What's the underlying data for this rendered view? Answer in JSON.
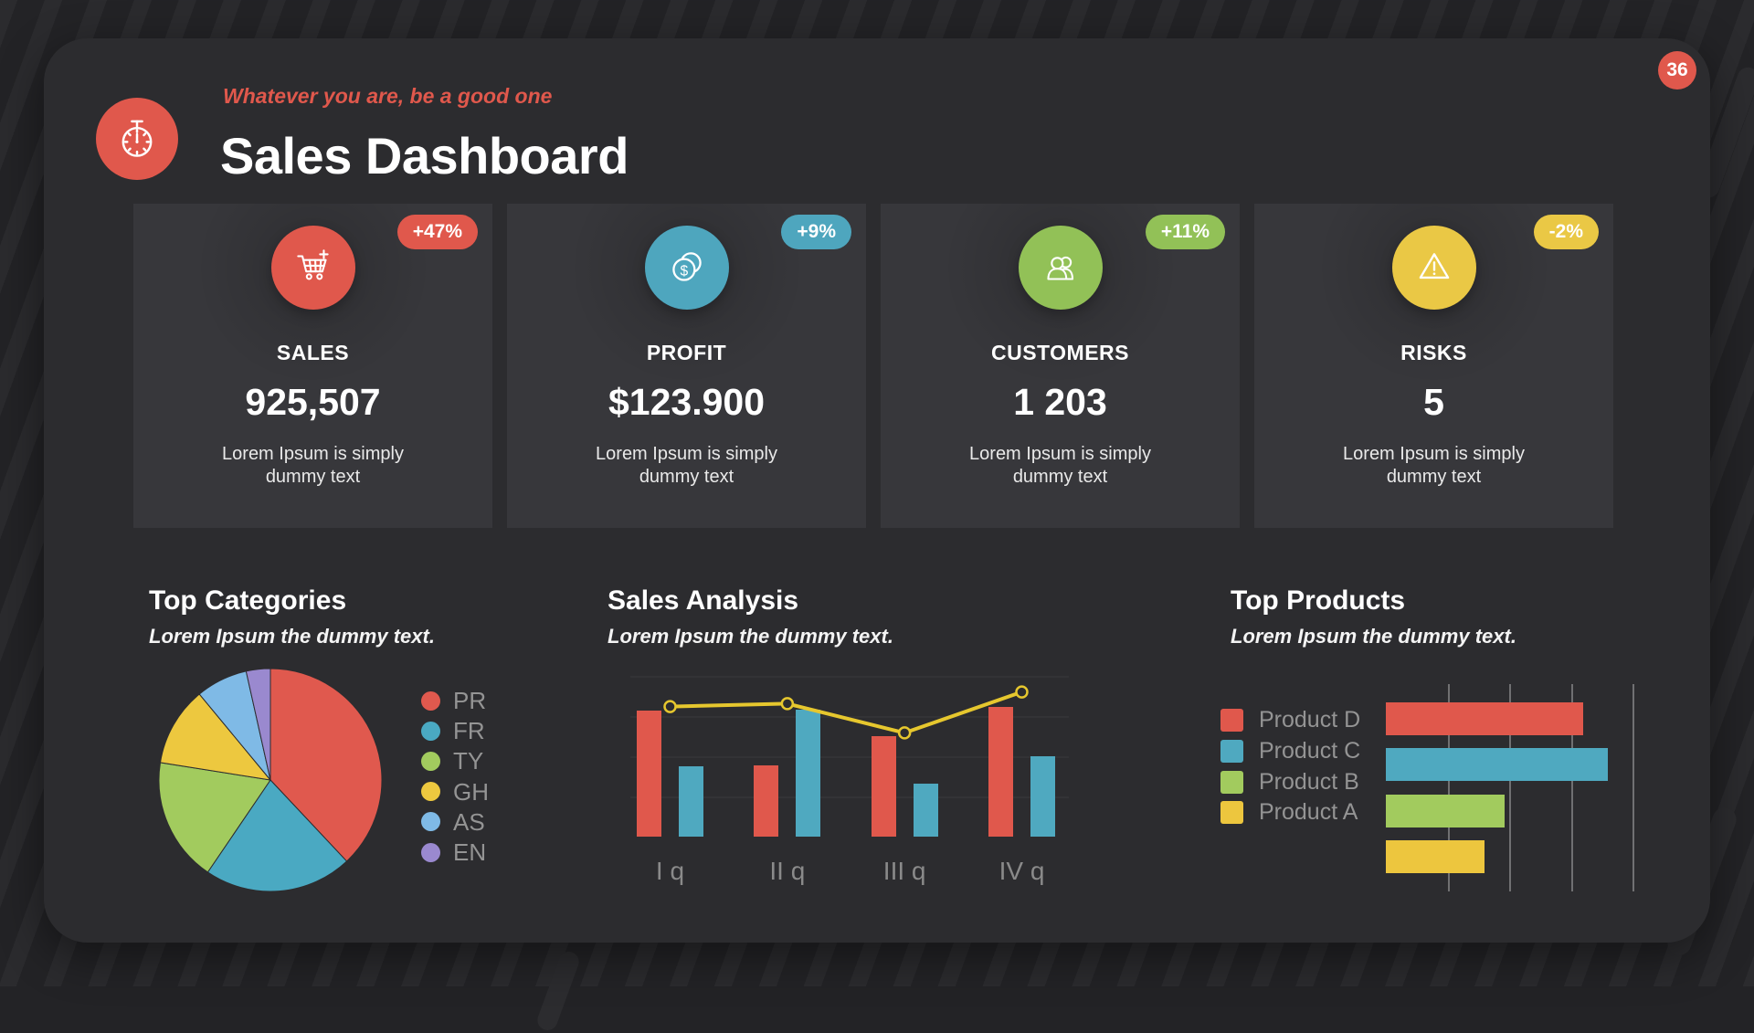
{
  "page": {
    "badge": "36",
    "quote": "Whatever you are, be a good one",
    "title": "Sales Dashboard",
    "accent_color": "#e0584c"
  },
  "kpi_cards": [
    {
      "label": "SALES",
      "value": "925,507",
      "delta": "+47%",
      "description": "Lorem Ipsum is simply dummy text",
      "color": "#e0584c",
      "icon": "cart-icon"
    },
    {
      "label": "PROFIT",
      "value": "$123.900",
      "delta": "+9%",
      "description": "Lorem Ipsum is simply dummy text",
      "color": "#4ea6be",
      "icon": "coins-icon"
    },
    {
      "label": "CUSTOMERS",
      "value": "1 203",
      "delta": "+11%",
      "description": "Lorem Ipsum is simply dummy text",
      "color": "#92c157",
      "icon": "customers-icon"
    },
    {
      "label": "RISKS",
      "value": "5",
      "delta": "-2%",
      "description": "Lorem Ipsum is simply dummy text",
      "color": "#eac845",
      "icon": "warning-icon"
    }
  ],
  "sections": {
    "categories": {
      "title": "Top Categories",
      "subtitle": "Lorem Ipsum the dummy text."
    },
    "analysis": {
      "title": "Sales Analysis",
      "subtitle": "Lorem Ipsum the dummy text."
    },
    "products": {
      "title": "Top Products",
      "subtitle": "Lorem Ipsum the dummy text."
    }
  },
  "chart_data": [
    {
      "type": "pie",
      "title": "Top Categories",
      "labels": [
        "PR",
        "FR",
        "TY",
        "GH",
        "AS",
        "EN"
      ],
      "values": [
        38,
        21.5,
        18,
        11.5,
        7.5,
        3.5
      ],
      "colors": [
        "#e0594e",
        "#4aa9c2",
        "#a2cb5e",
        "#edc83f",
        "#7fbae6",
        "#9a89cf"
      ],
      "legend_position": "right"
    },
    {
      "type": "bar-line",
      "title": "Sales Analysis",
      "categories": [
        "I q",
        "II q",
        "III q",
        "IV q"
      ],
      "series": [
        {
          "name": "series-red",
          "type": "bar",
          "color": "#e0584c",
          "values": [
            86,
            49,
            69,
            89
          ]
        },
        {
          "name": "series-teal",
          "type": "bar",
          "color": "#4fa9c0",
          "values": [
            48,
            87,
            36,
            55
          ]
        },
        {
          "name": "trend",
          "type": "line",
          "color": "#e6c72e",
          "values": [
            89,
            91,
            71,
            99
          ]
        }
      ],
      "ylim": [
        0,
        100
      ],
      "grid": "subtle-horizontal"
    },
    {
      "type": "bar-horizontal",
      "title": "Top Products",
      "categories": [
        "Product D",
        "Product C",
        "Product B",
        "Product A"
      ],
      "values": [
        80,
        90,
        48,
        40
      ],
      "colors": [
        "#e0584c",
        "#4fa9c0",
        "#a2cb5e",
        "#edc63e"
      ],
      "xlim": [
        0,
        100
      ],
      "gridlines": [
        25,
        50,
        75,
        100
      ],
      "legend_position": "left"
    }
  ]
}
